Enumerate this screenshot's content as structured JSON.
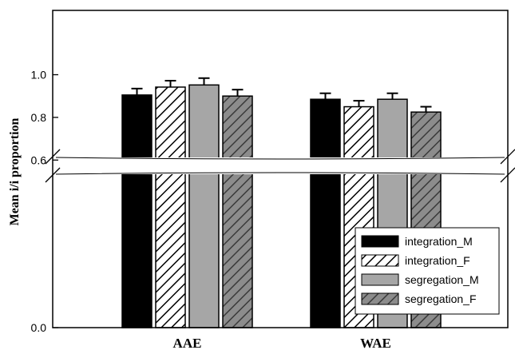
{
  "chart_data": {
    "type": "bar",
    "title": "",
    "xlabel": "",
    "ylabel": "Mean i/i proportion",
    "categories": [
      "AAE",
      "WAE"
    ],
    "series": [
      {
        "name": "integration_M",
        "values": [
          0.905,
          0.885
        ],
        "errors": [
          0.03,
          0.028
        ],
        "fill": "solid",
        "color": "#000000"
      },
      {
        "name": "integration_F",
        "values": [
          0.942,
          0.85
        ],
        "errors": [
          0.03,
          0.028
        ],
        "fill": "hatch-light",
        "color": "#ffffff"
      },
      {
        "name": "segregation_M",
        "values": [
          0.952,
          0.885
        ],
        "errors": [
          0.032,
          0.028
        ],
        "fill": "solid",
        "color": "#a6a6a6"
      },
      {
        "name": "segregation_F",
        "values": [
          0.9,
          0.825
        ],
        "errors": [
          0.03,
          0.025
        ],
        "fill": "hatch-gray",
        "color": "#8c8c8c"
      }
    ],
    "y_ticks": [
      "0.0",
      "0.6",
      "0.8",
      "1.0"
    ],
    "y_axis_break": [
      0.0,
      0.5
    ],
    "ylim": [
      0.5,
      1.2
    ],
    "grid": false,
    "legend_position": "bottom-right"
  }
}
